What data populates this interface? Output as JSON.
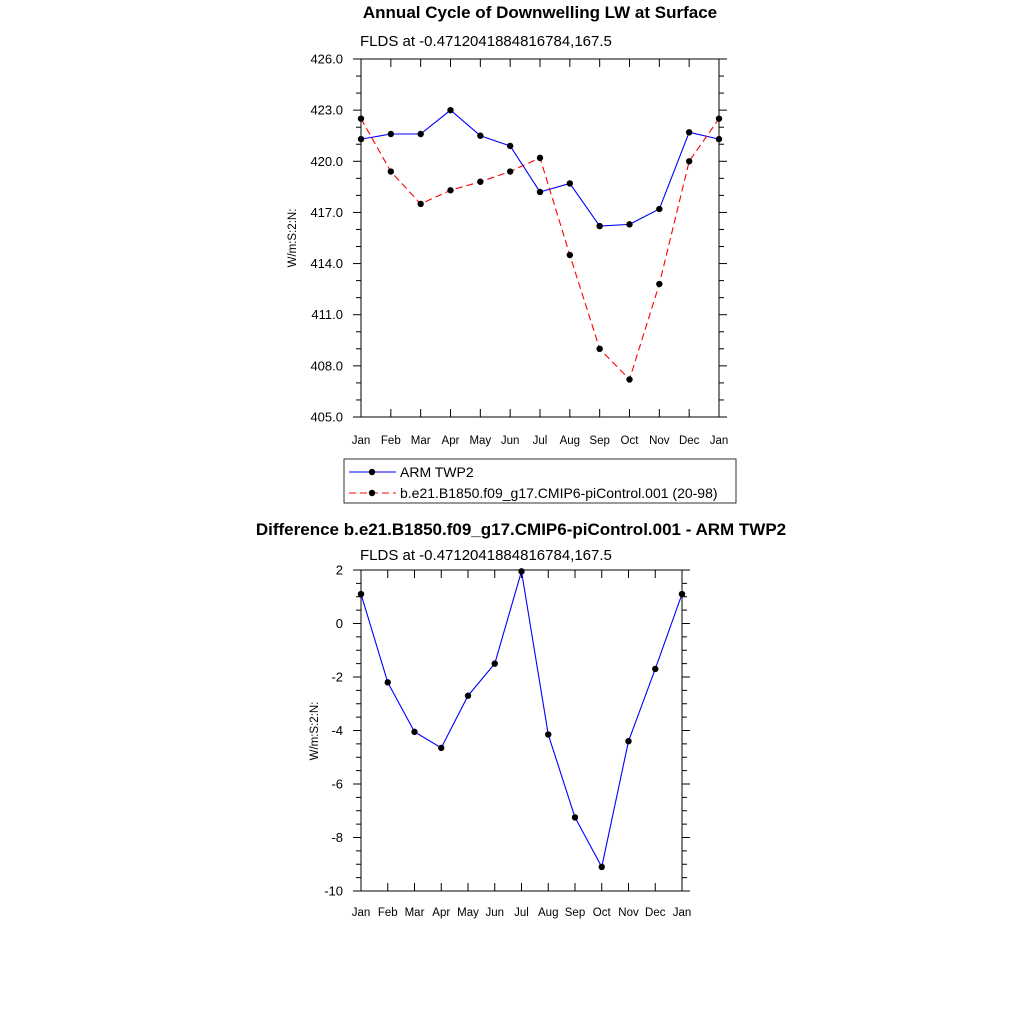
{
  "chart_data": [
    {
      "type": "line",
      "title": "Annual Cycle of Downwelling LW at Surface",
      "subtitle": "FLDS at -0.4712041884816784,167.5",
      "ylabel": "W/m:S:2:N:",
      "xlabel": "",
      "categories": [
        "Jan",
        "Feb",
        "Mar",
        "Apr",
        "May",
        "Jun",
        "Jul",
        "Aug",
        "Sep",
        "Oct",
        "Nov",
        "Dec",
        "Jan"
      ],
      "ylim": [
        405.0,
        426.0
      ],
      "yticks": [
        "405.0",
        "408.0",
        "411.0",
        "414.0",
        "417.0",
        "420.0",
        "423.0",
        "426.0"
      ],
      "series": [
        {
          "name": "ARM TWP2",
          "color": "#0000ff",
          "dash": "solid",
          "values": [
            421.3,
            421.6,
            421.6,
            423.0,
            421.5,
            420.9,
            418.2,
            418.7,
            416.2,
            416.3,
            417.2,
            421.7,
            421.3
          ]
        },
        {
          "name": "b.e21.B1850.f09_g17.CMIP6-piControl.001 (20-98)",
          "color": "#ff0000",
          "dash": "dashed",
          "values": [
            422.5,
            419.4,
            417.5,
            418.3,
            418.8,
            419.4,
            420.2,
            414.5,
            409.0,
            407.2,
            412.8,
            420.0,
            422.5
          ]
        }
      ],
      "legend": "bottom"
    },
    {
      "type": "line",
      "title": "Difference b.e21.B1850.f09_g17.CMIP6-piControl.001 - ARM TWP2",
      "subtitle": "FLDS at -0.4712041884816784,167.5",
      "ylabel": "W/m:S:2:N:",
      "xlabel": "",
      "categories": [
        "Jan",
        "Feb",
        "Mar",
        "Apr",
        "May",
        "Jun",
        "Jul",
        "Aug",
        "Sep",
        "Oct",
        "Nov",
        "Dec",
        "Jan"
      ],
      "ylim": [
        -10,
        2
      ],
      "yticks": [
        "-10",
        "-8",
        "-6",
        "-4",
        "-2",
        "0",
        "2"
      ],
      "series": [
        {
          "color": "#0000ff",
          "dash": "solid",
          "values": [
            1.1,
            -2.2,
            -4.05,
            -4.65,
            -2.7,
            -1.5,
            1.95,
            -4.15,
            -7.25,
            -9.1,
            -4.4,
            -1.7,
            1.1
          ]
        }
      ]
    }
  ]
}
